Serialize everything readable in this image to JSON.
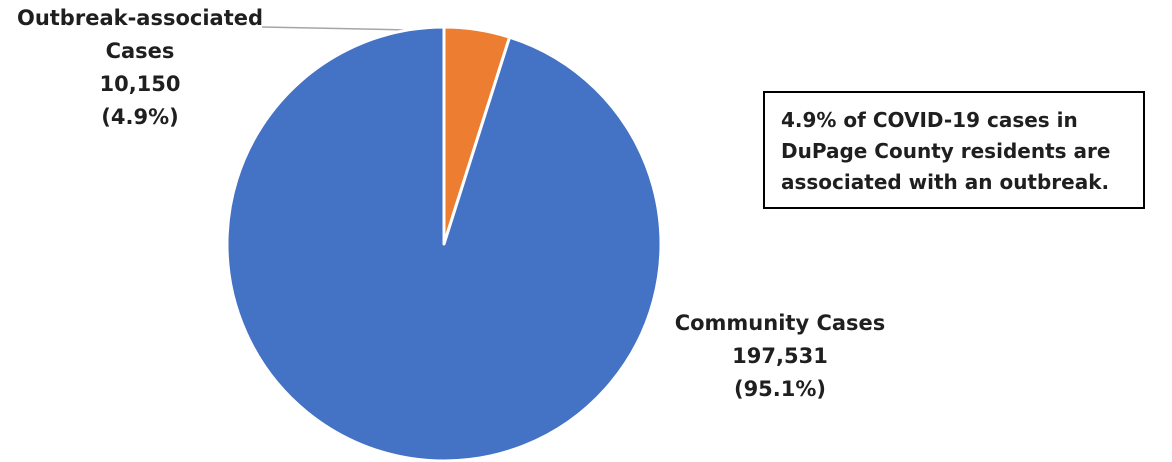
{
  "chart_data": {
    "type": "pie",
    "slices": [
      {
        "label_line1": "Outbreak-associated",
        "label_line2": "Cases",
        "value_text": "10,150",
        "percent_text": "(4.9%)",
        "value": 10150,
        "percent": 4.9,
        "color": "#ED7D31"
      },
      {
        "label_line1": "Community Cases",
        "value_text": "197,531",
        "percent_text": "(95.1%)",
        "value": 197531,
        "percent": 95.1,
        "color": "#4472C4"
      }
    ],
    "start_angle": "12 o'clock, clockwise",
    "slice_border_color": "#FFFFFF",
    "leader_line_color": "#A6A6A6"
  },
  "annotation": {
    "line1": "4.9% of COVID-19 cases in",
    "line2": "DuPage County residents are",
    "line3": "associated with an outbreak."
  }
}
